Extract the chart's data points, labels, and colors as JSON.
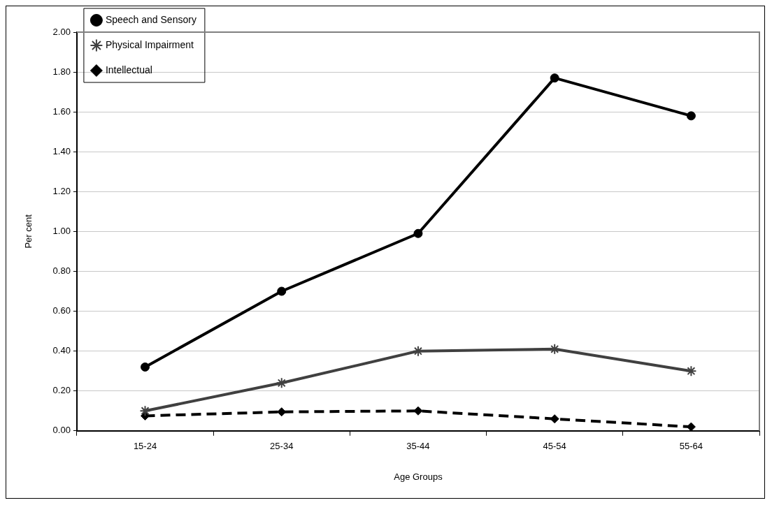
{
  "chart_data": {
    "type": "line",
    "xlabel": "Age Groups",
    "ylabel": "Per cent",
    "categories": [
      "15-24",
      "25-34",
      "35-44",
      "45-54",
      "55-64"
    ],
    "series": [
      {
        "name": "Speech and Sensory",
        "color": "#000000",
        "marker": "circle",
        "line_style": "solid",
        "values": [
          0.32,
          0.7,
          0.99,
          1.77,
          1.58
        ]
      },
      {
        "name": "Physical Impairment",
        "color": "#404040",
        "marker": "cross",
        "line_style": "solid",
        "values": [
          0.1,
          0.24,
          0.4,
          0.41,
          0.3
        ]
      },
      {
        "name": "Intellectual",
        "color": "#000000",
        "marker": "diamond",
        "line_style": "dashed",
        "values": [
          0.075,
          0.095,
          0.1,
          0.06,
          0.02
        ]
      }
    ],
    "ylim": [
      0,
      2
    ],
    "yticks": [
      {
        "value": 0,
        "label": "0.00"
      },
      {
        "value": 0.2,
        "label": "0.20"
      },
      {
        "value": 0.4,
        "label": "0.40"
      },
      {
        "value": 0.6,
        "label": "0.60"
      },
      {
        "value": 0.8,
        "label": "0.80"
      },
      {
        "value": 1,
        "label": "1.00"
      },
      {
        "value": 1.2,
        "label": "1.20"
      },
      {
        "value": 1.4,
        "label": "1.40"
      },
      {
        "value": 1.6,
        "label": "1.60"
      },
      {
        "value": 1.8,
        "label": "1.80"
      },
      {
        "value": 2,
        "label": "2.00"
      }
    ],
    "grid": "y",
    "legend": "top left"
  }
}
